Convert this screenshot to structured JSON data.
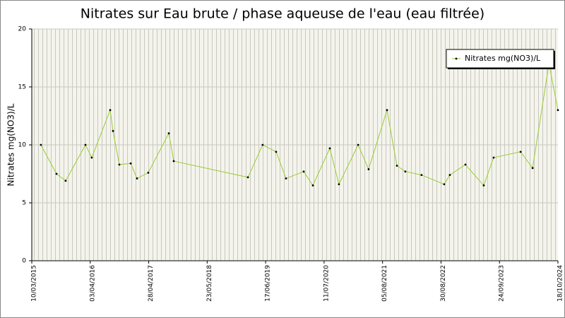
{
  "chart_data": {
    "type": "line",
    "title": "Nitrates sur Eau brute / phase aqueuse de l'eau (eau filtrée)",
    "y_label": "Nitrates mg(NO3)/L",
    "x": [
      "2015-05-10",
      "2015-08-22",
      "2015-10-22",
      "2016-03-02",
      "2016-04-13",
      "2016-08-14",
      "2016-09-02",
      "2016-10-14",
      "2016-12-29",
      "2017-02-09",
      "2017-04-25",
      "2017-09-09",
      "2017-10-12",
      "2019-02-19",
      "2019-05-28",
      "2019-08-26",
      "2019-10-31",
      "2020-02-26",
      "2020-04-27",
      "2020-08-18",
      "2020-10-18",
      "2021-02-23",
      "2021-05-04",
      "2021-09-04",
      "2021-11-09",
      "2022-01-04",
      "2022-04-22",
      "2022-09-20",
      "2022-10-28",
      "2023-02-09",
      "2023-06-11",
      "2023-08-16",
      "2024-02-12",
      "2024-05-02",
      "2024-08-19",
      "2024-10-18"
    ],
    "series": [
      {
        "name": "Nitrates mg(NO3)/L",
        "color": "#99cc33",
        "marker_color": "#000000",
        "values": [
          10,
          7.5,
          6.9,
          10,
          8.9,
          13,
          11.2,
          8.3,
          8.4,
          7.1,
          7.6,
          11,
          8.6,
          7.2,
          10,
          9.4,
          7.1,
          7.7,
          6.5,
          9.7,
          6.6,
          10,
          7.9,
          13,
          8.2,
          7.7,
          7.4,
          6.6,
          7.4,
          8.3,
          6.5,
          8.9,
          9.4,
          8,
          17,
          13
        ]
      }
    ],
    "xlim": [
      "2015-03-10",
      "2024-10-18"
    ],
    "xticks": [
      {
        "value": "2015-03-10",
        "label": "10/03/2015"
      },
      {
        "value": "2016-04-03",
        "label": "03/04/2016"
      },
      {
        "value": "2017-04-28",
        "label": "28/04/2017"
      },
      {
        "value": "2018-05-23",
        "label": "23/05/2018"
      },
      {
        "value": "2019-06-17",
        "label": "17/06/2019"
      },
      {
        "value": "2020-07-11",
        "label": "11/07/2020"
      },
      {
        "value": "2021-08-05",
        "label": "05/08/2021"
      },
      {
        "value": "2022-08-30",
        "label": "30/08/2022"
      },
      {
        "value": "2023-09-24",
        "label": "24/09/2023"
      },
      {
        "value": "2024-10-18",
        "label": "18/10/2024"
      }
    ],
    "ylim": [
      0,
      20
    ],
    "yticks": [
      0,
      5,
      10,
      15,
      20
    ],
    "grid": true,
    "legend": "top-right"
  }
}
